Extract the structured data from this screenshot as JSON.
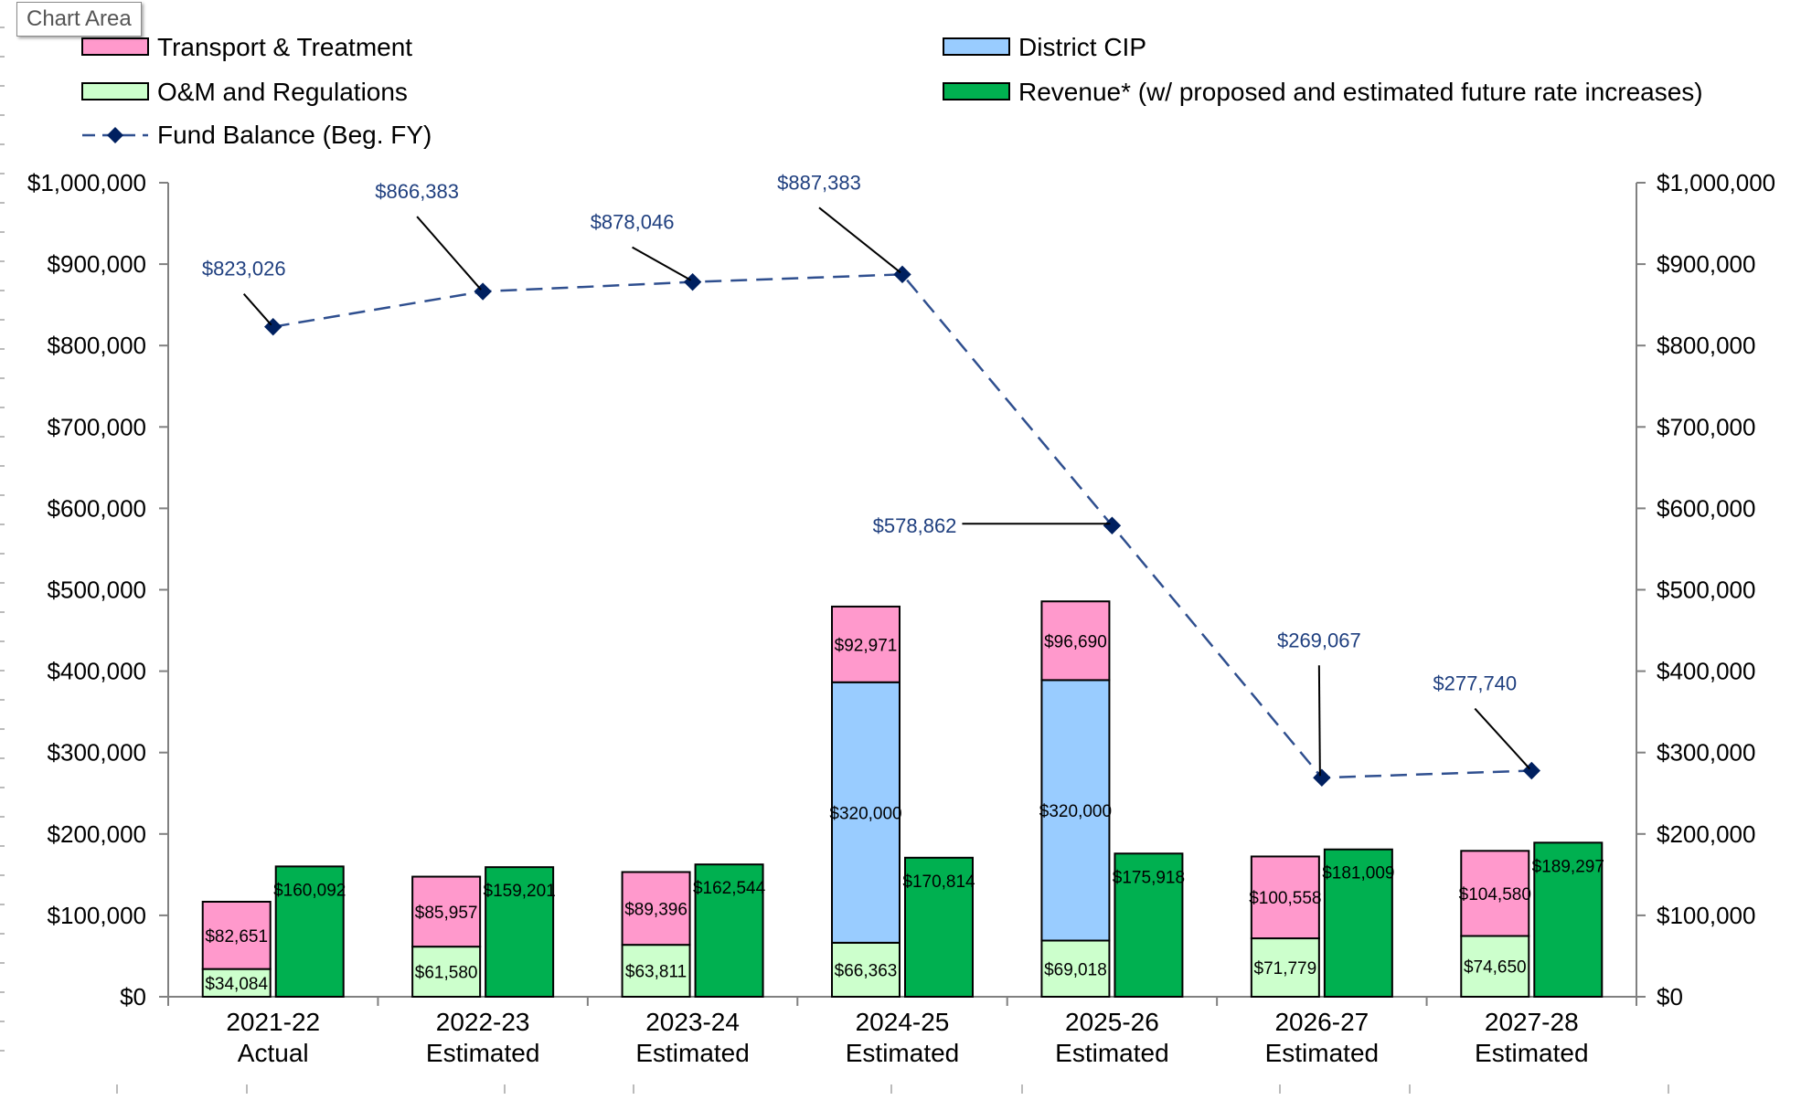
{
  "tooltip": {
    "label": "Chart Area"
  },
  "chart_data": {
    "type": "bar",
    "title": "",
    "categories": [
      [
        "2021-22",
        "Actual"
      ],
      [
        "2022-23",
        "Estimated"
      ],
      [
        "2023-24",
        "Estimated"
      ],
      [
        "2024-25",
        "Estimated"
      ],
      [
        "2025-26",
        "Estimated"
      ],
      [
        "2026-27",
        "Estimated"
      ],
      [
        "2027-28",
        "Estimated"
      ]
    ],
    "stacked_series": [
      {
        "name": "O&M and Regulations",
        "color": "#ccffcc",
        "values": [
          34084,
          61580,
          63811,
          66363,
          69018,
          71779,
          74650
        ],
        "labels": [
          "$34,084",
          "$61,580",
          "$63,811",
          "$66,363",
          "$69,018",
          "$71,779",
          "$74,650"
        ]
      },
      {
        "name": "District CIP",
        "color": "#99ccff",
        "values": [
          0,
          0,
          0,
          320000,
          320000,
          0,
          0
        ],
        "labels": [
          "",
          "",
          "",
          "$320,000",
          "$320,000",
          "",
          ""
        ]
      },
      {
        "name": "Transport & Treatment",
        "color": "#ff99cc",
        "values": [
          82651,
          85957,
          89396,
          92971,
          96690,
          100558,
          104580
        ],
        "labels": [
          "$82,651",
          "$85,957",
          "$89,396",
          "$92,971",
          "$96,690",
          "$100,558",
          "$104,580"
        ]
      }
    ],
    "revenue_series": {
      "name": "Revenue* (w/ proposed and estimated future rate increases)",
      "color": "#00b050",
      "values": [
        160092,
        159201,
        162544,
        170814,
        175918,
        181009,
        189297
      ],
      "labels": [
        "$160,092",
        "$159,201",
        "$162,544",
        "$170,814",
        "$175,918",
        "$181,009",
        "$189,297"
      ]
    },
    "line_series": {
      "name": "Fund Balance (Beg. FY)",
      "color": "#002060",
      "values": [
        823026,
        866383,
        878046,
        887383,
        578862,
        269067,
        277740
      ],
      "labels": [
        "$823,026",
        "$866,383",
        "$878,046",
        "$887,383",
        "$578,862",
        "$269,067",
        "$277,740"
      ]
    },
    "legend": [
      {
        "name": "Transport & Treatment",
        "kind": "box",
        "color": "#ff99cc"
      },
      {
        "name": "District CIP",
        "kind": "box",
        "color": "#99ccff"
      },
      {
        "name": "O&M and Regulations",
        "kind": "box",
        "color": "#ccffcc"
      },
      {
        "name": "Revenue* (w/ proposed and estimated future rate increases)",
        "kind": "box",
        "color": "#00b050"
      },
      {
        "name": "Fund Balance (Beg. FY)",
        "kind": "line",
        "color": "#002060"
      }
    ],
    "legend_position": "top",
    "y_left": {
      "min": 0,
      "max": 1000000,
      "step": 100000,
      "ticks": [
        "$0",
        "$100,000",
        "$200,000",
        "$300,000",
        "$400,000",
        "$500,000",
        "$600,000",
        "$700,000",
        "$800,000",
        "$900,000",
        "$1,000,000"
      ]
    },
    "y_right": {
      "min": 0,
      "max": 1000000,
      "step": 100000,
      "ticks": [
        "$0",
        "$100,000",
        "$200,000",
        "$300,000",
        "$400,000",
        "$500,000",
        "$600,000",
        "$700,000",
        "$800,000",
        "$900,000",
        "$1,000,000"
      ]
    },
    "grid": false
  }
}
